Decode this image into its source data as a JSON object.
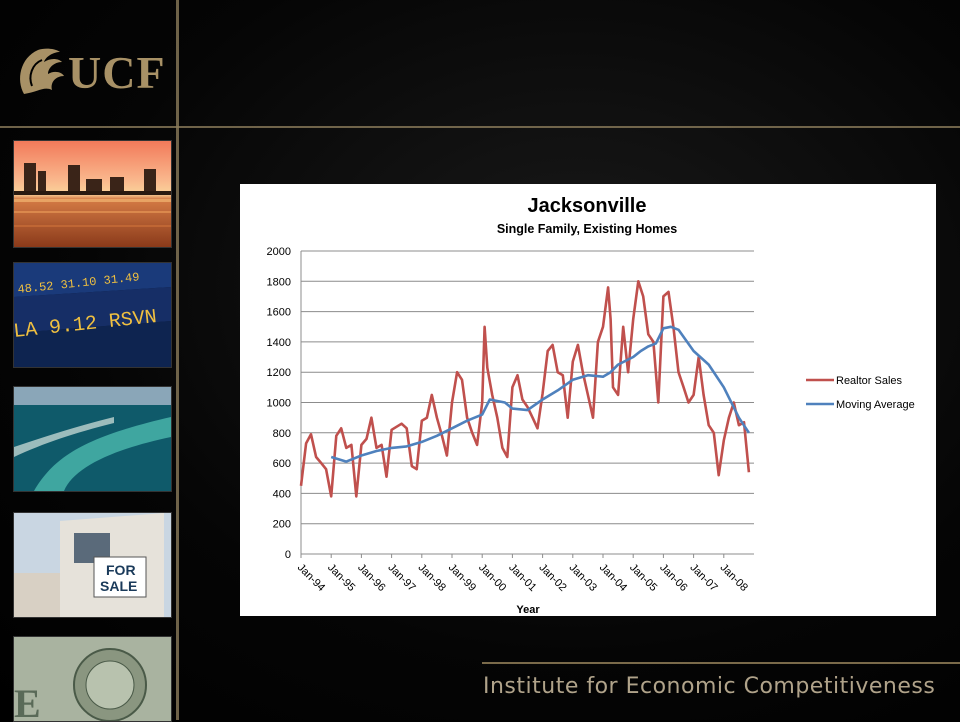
{
  "footer": {
    "institute": "Institute for Economic Competitiveness"
  },
  "logo": {
    "text": "UCF"
  },
  "colors": {
    "realtor_sales": "#c0504d",
    "moving_average": "#4f81bd",
    "accent": "#a89166"
  },
  "chart_data": {
    "type": "line",
    "title": "Jacksonville",
    "subtitle": "Single Family, Existing Homes",
    "xlabel": "Year",
    "ylabel": "",
    "ylim": [
      0,
      2000
    ],
    "yticks": [
      0,
      200,
      400,
      600,
      800,
      1000,
      1200,
      1400,
      1600,
      1800,
      2000
    ],
    "categories": [
      "Jan-94",
      "Jan-95",
      "Jan-96",
      "Jan-97",
      "Jan-98",
      "Jan-99",
      "Jan-00",
      "Jan-01",
      "Jan-02",
      "Jan-03",
      "Jan-04",
      "Jan-05",
      "Jan-06",
      "Jan-07",
      "Jan-08"
    ],
    "grid": true,
    "legend_position": "right",
    "series": [
      {
        "name": "Realtor Sales",
        "x": [
          1994.0,
          1994.17,
          1994.33,
          1994.5,
          1994.67,
          1994.83,
          1995.0,
          1995.17,
          1995.33,
          1995.5,
          1995.67,
          1995.83,
          1996.0,
          1996.17,
          1996.33,
          1996.5,
          1996.67,
          1996.83,
          1997.0,
          1997.17,
          1997.33,
          1997.5,
          1997.67,
          1997.83,
          1998.0,
          1998.17,
          1998.33,
          1998.5,
          1998.67,
          1998.83,
          1999.0,
          1999.17,
          1999.33,
          1999.5,
          1999.67,
          1999.83,
          2000.0,
          2000.08,
          2000.17,
          2000.33,
          2000.5,
          2000.67,
          2000.83,
          2001.0,
          2001.17,
          2001.33,
          2001.5,
          2001.67,
          2001.83,
          2002.0,
          2002.17,
          2002.33,
          2002.5,
          2002.67,
          2002.83,
          2003.0,
          2003.17,
          2003.33,
          2003.5,
          2003.67,
          2003.83,
          2004.0,
          2004.17,
          2004.25,
          2004.33,
          2004.5,
          2004.67,
          2004.83,
          2005.0,
          2005.17,
          2005.33,
          2005.5,
          2005.67,
          2005.83,
          2006.0,
          2006.17,
          2006.33,
          2006.5,
          2006.67,
          2006.83,
          2007.0,
          2007.17,
          2007.33,
          2007.5,
          2007.67,
          2007.83,
          2008.0,
          2008.17,
          2008.33,
          2008.5,
          2008.67,
          2008.83
        ],
        "values": [
          450,
          730,
          790,
          640,
          600,
          560,
          380,
          780,
          830,
          700,
          720,
          380,
          720,
          760,
          900,
          700,
          720,
          510,
          820,
          840,
          860,
          830,
          580,
          560,
          880,
          900,
          1050,
          900,
          780,
          650,
          1000,
          1200,
          1150,
          900,
          800,
          720,
          1000,
          1500,
          1230,
          1050,
          900,
          700,
          640,
          1100,
          1180,
          1020,
          970,
          900,
          830,
          1060,
          1340,
          1380,
          1200,
          1180,
          900,
          1270,
          1380,
          1200,
          1050,
          900,
          1400,
          1500,
          1760,
          1550,
          1100,
          1050,
          1500,
          1200,
          1550,
          1800,
          1700,
          1450,
          1400,
          1000,
          1700,
          1730,
          1500,
          1200,
          1100,
          1000,
          1050,
          1300,
          1050,
          850,
          800,
          520,
          750,
          900,
          1000,
          850,
          870,
          540
        ]
      },
      {
        "name": "Moving Average",
        "x": [
          1995.0,
          1995.5,
          1996.0,
          1996.5,
          1997.0,
          1997.5,
          1998.0,
          1998.5,
          1999.0,
          1999.5,
          2000.0,
          2000.25,
          2000.5,
          2000.75,
          2001.0,
          2001.5,
          2002.0,
          2002.5,
          2003.0,
          2003.5,
          2004.0,
          2004.25,
          2004.5,
          2005.0,
          2005.25,
          2005.5,
          2005.75,
          2006.0,
          2006.25,
          2006.5,
          2007.0,
          2007.5,
          2008.0,
          2008.5,
          2008.83
        ],
        "values": [
          640,
          610,
          650,
          680,
          700,
          710,
          740,
          780,
          830,
          880,
          920,
          1020,
          1010,
          1000,
          960,
          950,
          1020,
          1080,
          1150,
          1180,
          1170,
          1200,
          1250,
          1300,
          1340,
          1370,
          1390,
          1490,
          1500,
          1480,
          1340,
          1250,
          1100,
          900,
          800
        ]
      }
    ]
  }
}
